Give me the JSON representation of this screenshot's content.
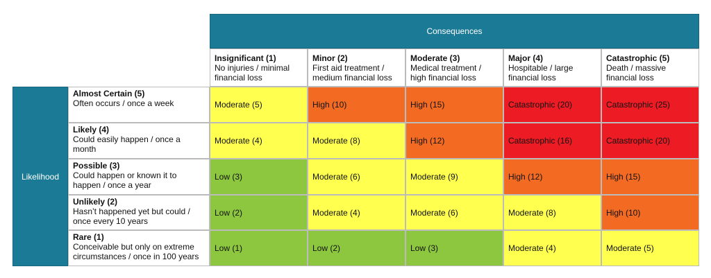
{
  "header": {
    "title": "Consequences"
  },
  "side": {
    "title": "Likelihood"
  },
  "columns": [
    {
      "title": "Insignificant (1)",
      "description": "No injuries / minimal financial loss"
    },
    {
      "title": "Minor (2)",
      "description": "First aid treatment / medium financial loss"
    },
    {
      "title": "Moderate (3)",
      "description": "Medical treatment / high financial loss"
    },
    {
      "title": "Major (4)",
      "description": "Hospitable / large financial loss"
    },
    {
      "title": "Catastrophic (5)",
      "description": "Death / massive financial loss"
    }
  ],
  "rows": [
    {
      "title": "Almost Certain (5)",
      "description": "Often occurs / once a week",
      "cells": [
        {
          "text": "Moderate (5)",
          "color": "#ffff4f"
        },
        {
          "text": "High (10)",
          "color": "#f36b22"
        },
        {
          "text": "High (15)",
          "color": "#f36b22"
        },
        {
          "text": "Catastrophic (20)",
          "color": "#ec1b24"
        },
        {
          "text": "Catastrophic (25)",
          "color": "#ec1b24"
        }
      ]
    },
    {
      "title": "Likely (4)",
      "description": "Could easily happen / once a month",
      "cells": [
        {
          "text": "Moderate (4)",
          "color": "#ffff4f"
        },
        {
          "text": "Moderate (8)",
          "color": "#ffff4f"
        },
        {
          "text": "High (12)",
          "color": "#f36b22"
        },
        {
          "text": "Catastrophic (16)",
          "color": "#ec1b24"
        },
        {
          "text": "Catastrophic (20)",
          "color": "#ec1b24"
        }
      ]
    },
    {
      "title": "Possible (3)",
      "description": "Could happen or known it to happen / once a year",
      "cells": [
        {
          "text": "Low (3)",
          "color": "#8dc63f"
        },
        {
          "text": "Moderate (6)",
          "color": "#ffff4f"
        },
        {
          "text": "Moderate (9)",
          "color": "#ffff4f"
        },
        {
          "text": "High (12)",
          "color": "#f36b22"
        },
        {
          "text": "High (15)",
          "color": "#f36b22"
        }
      ]
    },
    {
      "title": "Unlikely (2)",
      "description": "Hasn’t happened yet but could / once every 10 years",
      "cells": [
        {
          "text": "Low (2)",
          "color": "#8dc63f"
        },
        {
          "text": "Moderate (4)",
          "color": "#ffff4f"
        },
        {
          "text": "Moderate (6)",
          "color": "#ffff4f"
        },
        {
          "text": "Moderate (8)",
          "color": "#ffff4f"
        },
        {
          "text": "High (10)",
          "color": "#f36b22"
        }
      ]
    },
    {
      "title": "Rare (1)",
      "description": "Conceivable but only on extreme circumstances / once in 100 years",
      "cells": [
        {
          "text": "Low (1)",
          "color": "#8dc63f"
        },
        {
          "text": "Low (2)",
          "color": "#8dc63f"
        },
        {
          "text": "Low (3)",
          "color": "#8dc63f"
        },
        {
          "text": "Moderate (4)",
          "color": "#ffff4f"
        },
        {
          "text": "Moderate (5)",
          "color": "#ffff4f"
        }
      ]
    }
  ]
}
